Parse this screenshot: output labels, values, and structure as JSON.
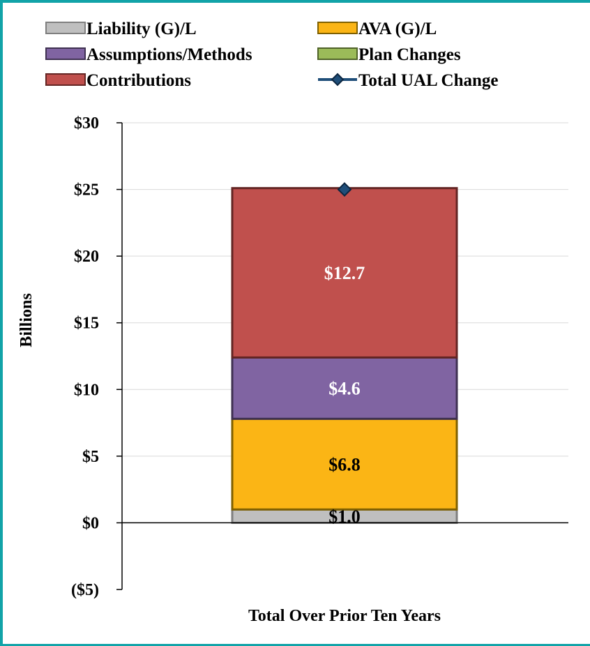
{
  "chart_data": {
    "type": "bar",
    "stacked": true,
    "categories": [
      "Total Over Prior Ten Years"
    ],
    "ylabel": "Billions",
    "ylim": [
      -5,
      30
    ],
    "yticks": [
      "($5)",
      "$0",
      "$5",
      "$10",
      "$15",
      "$20",
      "$25",
      "$30"
    ],
    "ytick_values": [
      -5,
      0,
      5,
      10,
      15,
      20,
      25,
      30
    ],
    "grid": true,
    "legend_position": "top",
    "series": [
      {
        "name": "Liability (G)/L",
        "values": [
          1.0
        ],
        "color": "#bfbfbf",
        "stroke": "#7f7f7f",
        "label": "$1.0",
        "label_color": "#000000"
      },
      {
        "name": "AVA (G)/L",
        "values": [
          6.8
        ],
        "color": "#fbb515",
        "stroke": "#7f6000",
        "label": "$6.8",
        "label_color": "#000000"
      },
      {
        "name": "Assumptions/Methods",
        "values": [
          4.6
        ],
        "color": "#8064a2",
        "stroke": "#3f3151",
        "label": "$4.6",
        "label_color": "#ffffff"
      },
      {
        "name": "Plan Changes",
        "values": [
          0.0
        ],
        "color": "#9bbb59",
        "stroke": "#4f6228",
        "label": "",
        "label_color": "#000000"
      },
      {
        "name": "Contributions",
        "values": [
          12.7
        ],
        "color": "#c0504d",
        "stroke": "#632523",
        "label": "$12.7",
        "label_color": "#ffffff"
      }
    ],
    "line_series": {
      "name": "Total UAL Change",
      "values": [
        25.0
      ],
      "color": "#1f4e79",
      "marker_fill": "#1f4e79",
      "marker_stroke": "#0b2540"
    }
  },
  "legend_order": [
    "Liability (G)/L",
    "AVA (G)/L",
    "Assumptions/Methods",
    "Plan Changes",
    "Contributions",
    "Total UAL Change"
  ]
}
